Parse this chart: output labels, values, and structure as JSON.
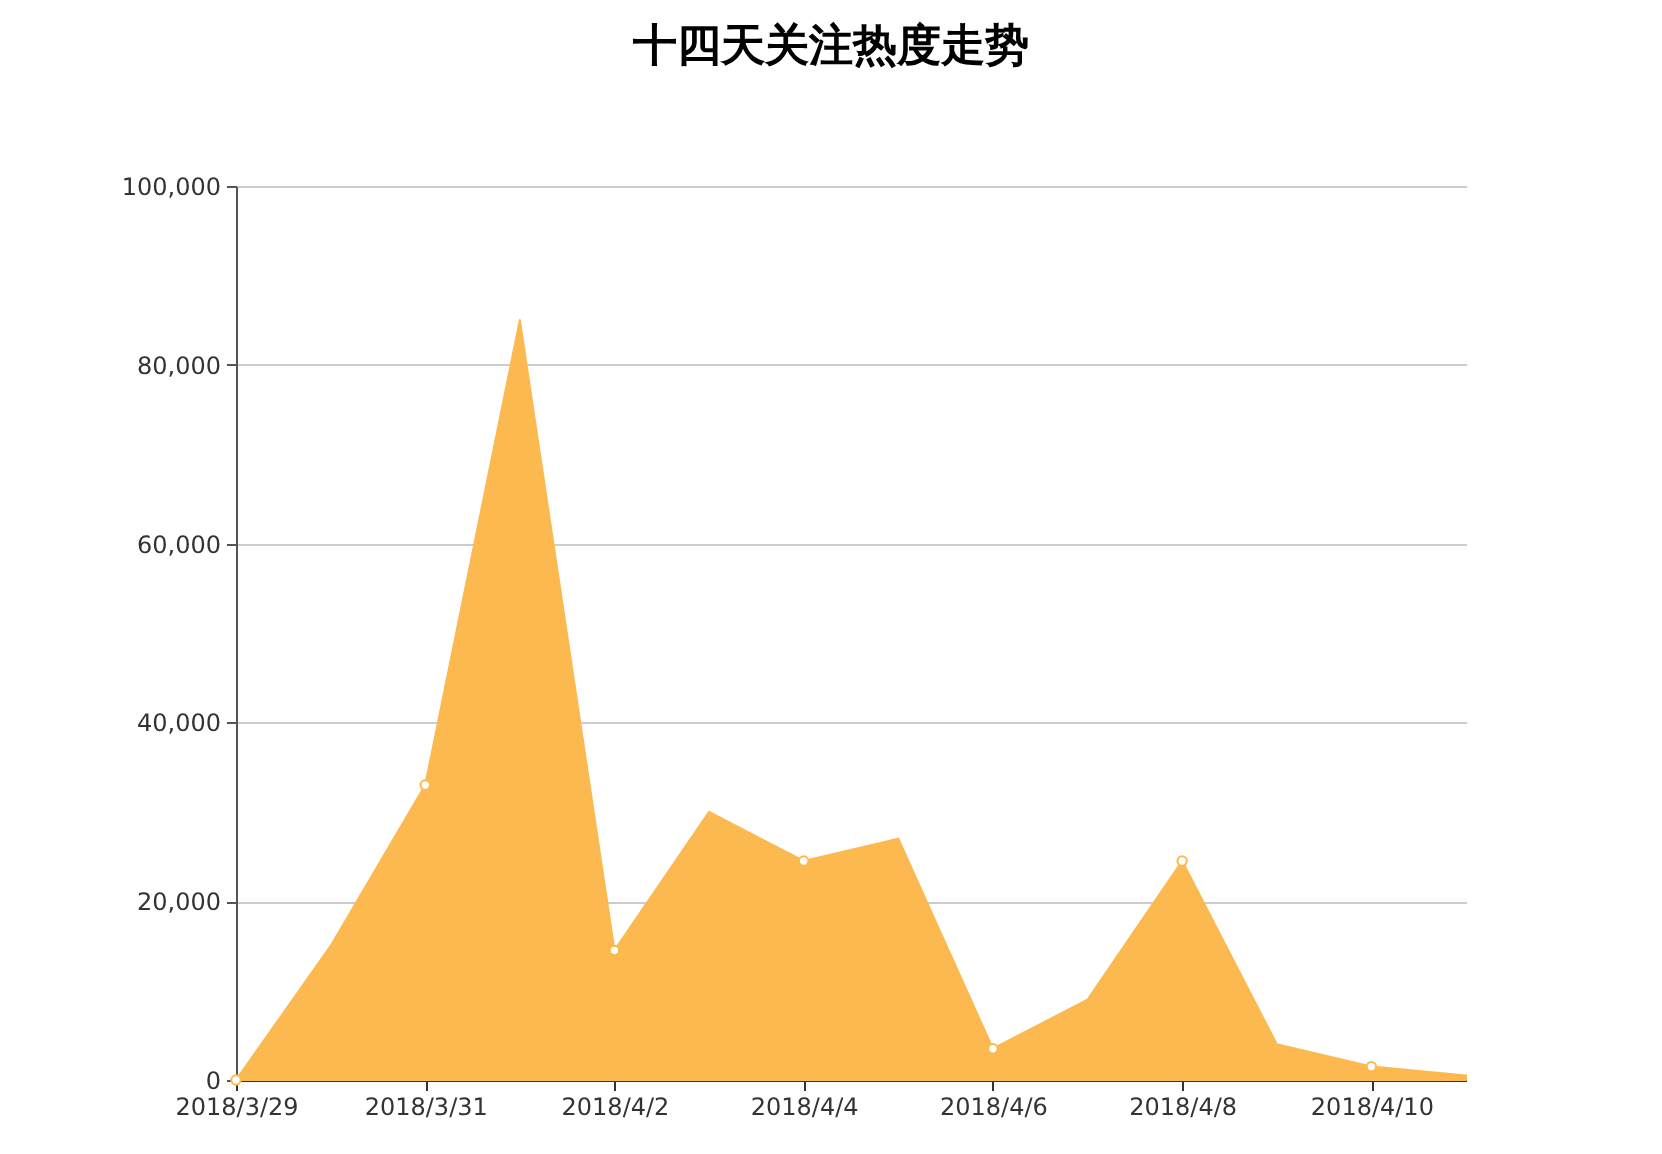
{
  "chart_data": {
    "type": "area",
    "title": "十四天关注热度走势",
    "x": [
      "2018-03-29",
      "2018-03-30",
      "2018-03-31",
      "2018-04-01",
      "2018-04-02",
      "2018-04-03",
      "2018-04-04",
      "2018-04-05",
      "2018-04-06",
      "2018-04-07",
      "2018-04-08",
      "2018-04-09",
      "2018-04-10",
      "2018-04-11"
    ],
    "values": [
      0,
      15000,
      33000,
      85000,
      14500,
      30000,
      24500,
      27000,
      3500,
      9000,
      24500,
      4000,
      1500,
      500
    ],
    "color": "#fcb950",
    "xlim": [
      "2018-03-29",
      "2018-04-11"
    ],
    "xticks": [
      {
        "value": "2018-03-29",
        "label": "2018/3/29"
      },
      {
        "value": "2018-03-31",
        "label": "2018/3/31"
      },
      {
        "value": "2018-04-02",
        "label": "2018/4/2"
      },
      {
        "value": "2018-04-04",
        "label": "2018/4/4"
      },
      {
        "value": "2018-04-06",
        "label": "2018/4/6"
      },
      {
        "value": "2018-04-08",
        "label": "2018/4/8"
      },
      {
        "value": "2018-04-10",
        "label": "2018/4/10"
      }
    ],
    "ylim": [
      0,
      100000
    ],
    "yticks": [
      {
        "value": 0,
        "label": "0"
      },
      {
        "value": 20000,
        "label": "20,000"
      },
      {
        "value": 40000,
        "label": "40,000"
      },
      {
        "value": 60000,
        "label": "60,000"
      },
      {
        "value": 80000,
        "label": "80,000"
      },
      {
        "value": 100000,
        "label": "100,000"
      }
    ],
    "grid": "y",
    "marker": "circle"
  }
}
